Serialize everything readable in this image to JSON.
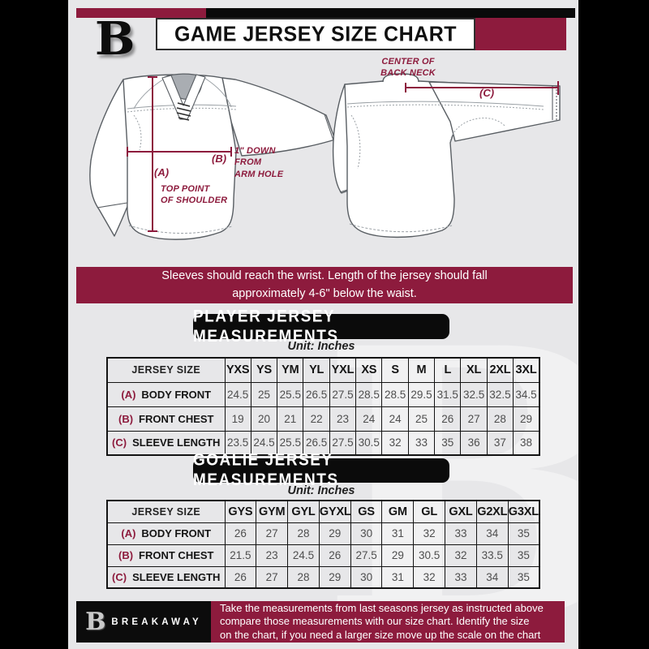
{
  "page": {
    "colors": {
      "maroon": "#8d1b3d",
      "ink": "#0a0a0a",
      "background": "#e7e7e9"
    },
    "brand_letter": "B",
    "watermark_letter": "B",
    "title": "GAME JERSEY SIZE CHART"
  },
  "diagram": {
    "front": {
      "key_a": "(A)",
      "caption_a": "TOP POINT\nOF SHOULDER",
      "key_b": "(B)",
      "caption_b": "1\" DOWN\nFROM\nARM HOLE"
    },
    "back": {
      "key_c": "(C)",
      "caption_c": "CENTER OF\nBACK NECK"
    }
  },
  "note": "Sleeves should reach the wrist. Length of the jersey should fall\napproximately 4-6\" below the waist.",
  "player_section": {
    "heading": "PLAYER JERSEY MEASUREMENTS",
    "unit": "Unit: Inches",
    "table": {
      "size_header": "JERSEY SIZE",
      "sizes": [
        "YXS",
        "YS",
        "YM",
        "YL",
        "YXL",
        "XS",
        "S",
        "M",
        "L",
        "XL",
        "2XL",
        "3XL"
      ],
      "rows": [
        {
          "key": "(A)",
          "label": "BODY FRONT",
          "values": [
            "24.5",
            "25",
            "25.5",
            "26.5",
            "27.5",
            "28.5",
            "28.5",
            "29.5",
            "31.5",
            "32.5",
            "32.5",
            "34.5"
          ]
        },
        {
          "key": "(B)",
          "label": "FRONT CHEST",
          "values": [
            "19",
            "20",
            "21",
            "22",
            "23",
            "24",
            "24",
            "25",
            "26",
            "27",
            "28",
            "29"
          ]
        },
        {
          "key": "(C)",
          "label": "SLEEVE LENGTH",
          "values": [
            "23.5",
            "24.5",
            "25.5",
            "26.5",
            "27.5",
            "30.5",
            "32",
            "33",
            "35",
            "36",
            "37",
            "38"
          ]
        }
      ]
    }
  },
  "goalie_section": {
    "heading": "GOALIE JERSEY MEASUREMENTS",
    "unit": "Unit: Inches",
    "table": {
      "size_header": "JERSEY SIZE",
      "sizes": [
        "GYS",
        "GYM",
        "GYL",
        "GYXL",
        "GS",
        "GM",
        "GL",
        "GXL",
        "G2XL",
        "G3XL"
      ],
      "rows": [
        {
          "key": "(A)",
          "label": "BODY FRONT",
          "values": [
            "26",
            "27",
            "28",
            "29",
            "30",
            "31",
            "32",
            "33",
            "34",
            "35"
          ]
        },
        {
          "key": "(B)",
          "label": "FRONT CHEST",
          "values": [
            "21.5",
            "23",
            "24.5",
            "26",
            "27.5",
            "29",
            "30.5",
            "32",
            "33.5",
            "35"
          ]
        },
        {
          "key": "(C)",
          "label": "SLEEVE LENGTH",
          "values": [
            "26",
            "27",
            "28",
            "29",
            "30",
            "31",
            "32",
            "33",
            "34",
            "35"
          ]
        }
      ]
    }
  },
  "footer": {
    "brand_letter": "B",
    "brand": "BREAKAWAY",
    "text": "Take the measurements from last seasons jersey as instructed above\ncompare those measurements  with our size chart. Identify the size\non the chart, if you need a larger size move up the scale on the chart"
  }
}
